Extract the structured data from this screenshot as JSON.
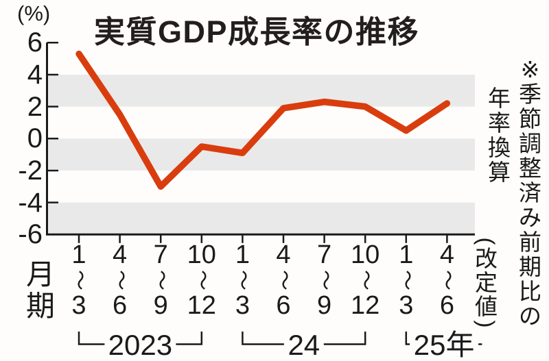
{
  "page": {
    "unit_label": "(%)",
    "title": "実質GDP成長率の推移",
    "x_axis_title": "月期",
    "side_note_right": "※季節調整済み前期比の",
    "side_note_left": "年率換算",
    "revision_note": "(改定値)"
  },
  "colors": {
    "line": "#d93d0e",
    "band": "#e9e9e9",
    "axis": "#1a1a1a",
    "text": "#1a1a1a",
    "background": "#fefdfc"
  },
  "chart_data": {
    "type": "line",
    "title": "実質GDP成長率の推移",
    "ylabel": "(%)",
    "xlabel": "月期",
    "ylim": [
      -6,
      6
    ],
    "yticks": [
      6,
      4,
      2,
      0,
      -2,
      -4,
      -6
    ],
    "shaded_bands": [
      [
        4,
        2
      ],
      [
        0,
        -2
      ],
      [
        -4,
        -6
      ]
    ],
    "grid": false,
    "legend": false,
    "categories": [
      "1〜3",
      "4〜6",
      "7〜9",
      "10〜12",
      "1〜3",
      "4〜6",
      "7〜9",
      "10〜12",
      "1〜3",
      "4〜6"
    ],
    "values": [
      5.3,
      1.5,
      -3.0,
      -0.5,
      -0.9,
      1.9,
      2.3,
      2.0,
      0.5,
      2.2
    ],
    "year_groups": [
      {
        "label": "2023",
        "from": 0,
        "to": 3,
        "closed": true
      },
      {
        "label": "24",
        "from": 4,
        "to": 7,
        "closed": true
      },
      {
        "label": "25年",
        "from": 8,
        "to": 9,
        "closed": false
      }
    ],
    "annotation": "※季節調整済み前期比の年率換算",
    "value_note": "(改定値)"
  }
}
